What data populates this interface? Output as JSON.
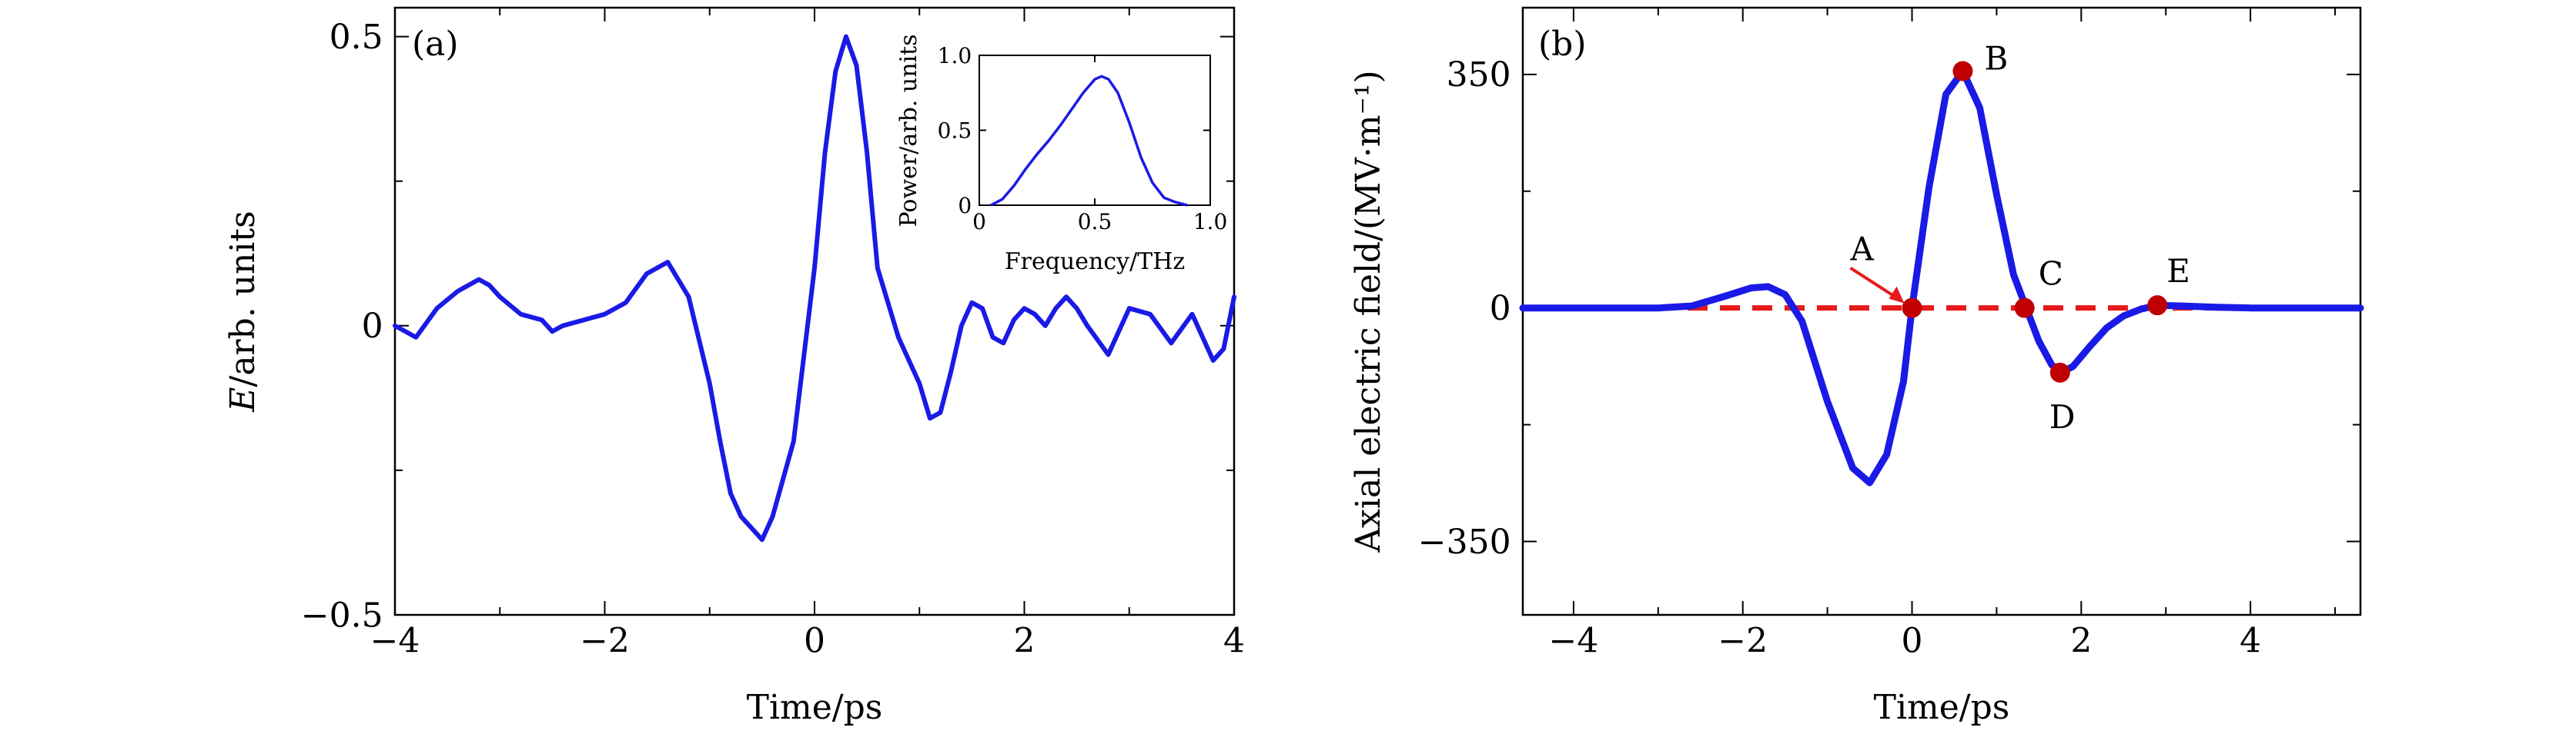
{
  "chart_data": [
    {
      "type": "line",
      "panel_label": "(a)",
      "xlabel": "Time/ps",
      "ylabel_italic": "E",
      "ylabel_rest": "/arb. units",
      "xlim": [
        -4,
        4
      ],
      "ylim": [
        -0.5,
        0.55
      ],
      "xticks": [
        -4,
        -2,
        0,
        2,
        4
      ],
      "xtick_labels": [
        "−4",
        "−2",
        "0",
        "2",
        "4"
      ],
      "yticks": [
        -0.5,
        0,
        0.5
      ],
      "ytick_labels": [
        "−0.5",
        "0",
        "0.5"
      ],
      "grid": false,
      "line_color": "#1a1ae6",
      "series": [
        {
          "x": [
            -4.0,
            -3.8,
            -3.6,
            -3.4,
            -3.2,
            -3.1,
            -3.0,
            -2.8,
            -2.6,
            -2.5,
            -2.4,
            -2.2,
            -2.0,
            -1.8,
            -1.6,
            -1.4,
            -1.3,
            -1.2,
            -1.0,
            -0.9,
            -0.8,
            -0.7,
            -0.6,
            -0.5,
            -0.4,
            -0.2,
            0.0,
            0.1,
            0.2,
            0.3,
            0.4,
            0.5,
            0.6,
            0.8,
            1.0,
            1.1,
            1.2,
            1.3,
            1.4,
            1.5,
            1.6,
            1.7,
            1.8,
            1.9,
            2.0,
            2.1,
            2.2,
            2.3,
            2.4,
            2.5,
            2.6,
            2.8,
            3.0,
            3.2,
            3.4,
            3.6,
            3.8,
            3.9,
            4.0
          ],
          "y": [
            0.0,
            -0.02,
            0.03,
            0.06,
            0.08,
            0.07,
            0.05,
            0.02,
            0.01,
            -0.01,
            0.0,
            0.01,
            0.02,
            0.04,
            0.09,
            0.11,
            0.08,
            0.05,
            -0.1,
            -0.2,
            -0.29,
            -0.33,
            -0.35,
            -0.37,
            -0.33,
            -0.2,
            0.1,
            0.3,
            0.44,
            0.5,
            0.45,
            0.3,
            0.1,
            -0.02,
            -0.1,
            -0.16,
            -0.15,
            -0.08,
            0.0,
            0.04,
            0.03,
            -0.02,
            -0.03,
            0.01,
            0.03,
            0.02,
            0.0,
            0.03,
            0.05,
            0.03,
            0.0,
            -0.05,
            0.03,
            0.02,
            -0.03,
            0.02,
            -0.06,
            -0.04,
            0.05
          ]
        }
      ],
      "inset": {
        "type": "line",
        "xlabel": "Frequency/THz",
        "ylabel": "Power/arb. units",
        "xlim": [
          0,
          1
        ],
        "ylim": [
          0,
          1
        ],
        "xticks": [
          0,
          0.5,
          1.0
        ],
        "xtick_labels": [
          "0",
          "0.5",
          "1.0"
        ],
        "yticks": [
          0,
          0.5,
          1.0
        ],
        "ytick_labels": [
          "0",
          "0.5",
          "1.0"
        ],
        "x": [
          0.05,
          0.1,
          0.15,
          0.2,
          0.25,
          0.3,
          0.35,
          0.4,
          0.45,
          0.5,
          0.53,
          0.56,
          0.6,
          0.65,
          0.7,
          0.75,
          0.8,
          0.85,
          0.9
        ],
        "y": [
          0.0,
          0.04,
          0.13,
          0.24,
          0.34,
          0.43,
          0.53,
          0.64,
          0.75,
          0.84,
          0.86,
          0.84,
          0.75,
          0.55,
          0.32,
          0.15,
          0.05,
          0.02,
          0.0
        ]
      }
    },
    {
      "type": "line",
      "panel_label": "(b)",
      "xlabel": "Time/ps",
      "ylabel": "Axial electric field/(MV·m⁻¹)",
      "xlim": [
        -4.6,
        5.3
      ],
      "ylim": [
        -460,
        450
      ],
      "xticks": [
        -4,
        -2,
        0,
        2,
        4
      ],
      "xtick_labels": [
        "−4",
        "−2",
        "0",
        "2",
        "4"
      ],
      "yticks": [
        -350,
        0,
        350
      ],
      "ytick_labels": [
        "−350",
        "0",
        "350"
      ],
      "grid": false,
      "line_color": "#1a1ae6",
      "baseline_color": "#e61a1a",
      "marker_color": "#c00000",
      "series": [
        {
          "x": [
            -4.6,
            -3.0,
            -2.6,
            -2.2,
            -1.9,
            -1.7,
            -1.5,
            -1.3,
            -1.0,
            -0.7,
            -0.5,
            -0.3,
            -0.1,
            0.0,
            0.2,
            0.4,
            0.6,
            0.8,
            1.0,
            1.2,
            1.35,
            1.5,
            1.65,
            1.75,
            1.9,
            2.1,
            2.3,
            2.5,
            2.7,
            2.9,
            3.2,
            3.6,
            4.0,
            4.5,
            5.3
          ],
          "y": [
            0,
            0,
            3,
            18,
            30,
            32,
            20,
            -20,
            -140,
            -240,
            -262,
            -220,
            -110,
            0,
            180,
            320,
            355,
            300,
            170,
            50,
            0,
            -50,
            -85,
            -97,
            -88,
            -58,
            -30,
            -12,
            -2,
            4,
            3,
            1,
            0,
            0,
            0
          ]
        }
      ],
      "points": [
        {
          "label": "A",
          "x": 0.0,
          "y": 0
        },
        {
          "label": "B",
          "x": 0.6,
          "y": 355
        },
        {
          "label": "C",
          "x": 1.33,
          "y": 0
        },
        {
          "label": "D",
          "x": 1.75,
          "y": -97
        },
        {
          "label": "E",
          "x": 2.9,
          "y": 4
        }
      ]
    }
  ]
}
